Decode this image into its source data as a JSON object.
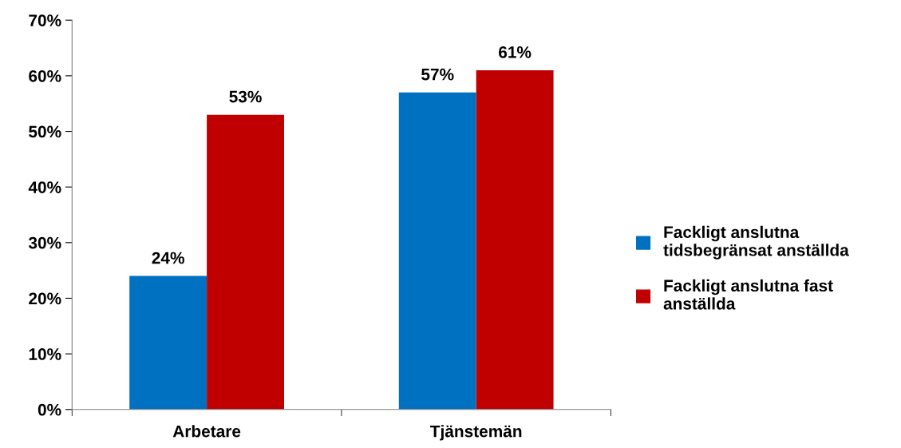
{
  "chart_data": {
    "type": "bar",
    "categories": [
      "Arbetare",
      "Tjänstemän"
    ],
    "series": [
      {
        "name": "Fackligt anslutna tidsbegränsat anställda",
        "color": "#0070c0",
        "values": [
          24,
          57
        ],
        "value_labels": [
          "24%",
          "57%"
        ]
      },
      {
        "name": "Fackligt anslutna fast anställda",
        "color": "#c00000",
        "values": [
          53,
          61
        ],
        "value_labels": [
          "53%",
          "61%"
        ]
      }
    ],
    "ylim": [
      0,
      70
    ],
    "yticks": [
      {
        "value": 0,
        "label": "0%"
      },
      {
        "value": 10,
        "label": "10%"
      },
      {
        "value": 20,
        "label": "20%"
      },
      {
        "value": 30,
        "label": "30%"
      },
      {
        "value": 40,
        "label": "40%"
      },
      {
        "value": 50,
        "label": "50%"
      },
      {
        "value": 60,
        "label": "60%"
      },
      {
        "value": 70,
        "label": "70%"
      }
    ],
    "grid": false,
    "legend": "right"
  }
}
